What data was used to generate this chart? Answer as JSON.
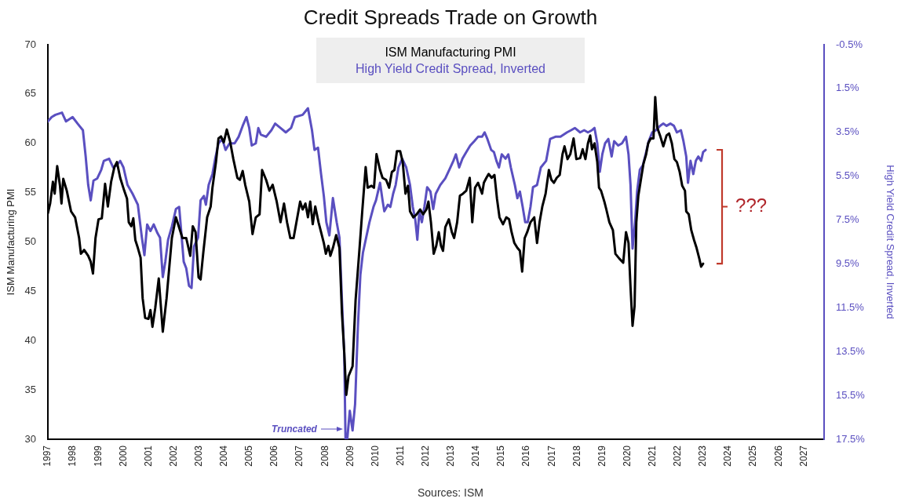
{
  "chart_data": {
    "type": "line",
    "title": "Credit Spreads Trade on Growth",
    "ylabel": "ISM Manufacturing PMI",
    "y2label": "High Yield Credit Spread, Inverted",
    "legend": "top",
    "xlim": [
      1997,
      2027.8
    ],
    "xticks": [
      1997,
      1998,
      1999,
      2000,
      2001,
      2002,
      2003,
      2004,
      2005,
      2006,
      2007,
      2008,
      2009,
      2010,
      2011,
      2012,
      2013,
      2014,
      2015,
      2016,
      2017,
      2018,
      2019,
      2020,
      2021,
      2022,
      2023,
      2024,
      2025,
      2026,
      2027
    ],
    "ylim": [
      30,
      70
    ],
    "yticks": [
      30,
      35,
      40,
      45,
      50,
      55,
      60,
      65,
      70
    ],
    "y2lim": [
      17.5,
      -0.5
    ],
    "y2ticks": [
      {
        "value": -0.5,
        "label": "-0.5%"
      },
      {
        "value": 1.5,
        "label": "1.5%"
      },
      {
        "value": 3.5,
        "label": "3.5%"
      },
      {
        "value": 5.5,
        "label": "5.5%"
      },
      {
        "value": 7.5,
        "label": "7.5%"
      },
      {
        "value": 9.5,
        "label": "9.5%"
      },
      {
        "value": 11.5,
        "label": "11.5%"
      },
      {
        "value": 13.5,
        "label": "13.5%"
      },
      {
        "value": 15.5,
        "label": "15.5%"
      },
      {
        "value": 17.5,
        "label": "17.5%"
      }
    ],
    "series": [
      {
        "name": "ISM Manufacturing PMI",
        "color": "#000000",
        "x": [
          1997.0,
          1997.09,
          1997.2,
          1997.27,
          1997.37,
          1997.48,
          1997.54,
          1997.61,
          1997.75,
          1997.92,
          1998.08,
          1998.24,
          1998.31,
          1998.44,
          1998.6,
          1998.7,
          1998.79,
          1998.89,
          1999.01,
          1999.14,
          1999.27,
          1999.38,
          1999.51,
          1999.64,
          1999.74,
          1999.87,
          2000.03,
          2000.14,
          2000.21,
          2000.31,
          2000.39,
          2000.47,
          2000.57,
          2000.68,
          2000.76,
          2000.86,
          2000.99,
          2001.07,
          2001.15,
          2001.26,
          2001.4,
          2001.56,
          2001.71,
          2001.92,
          2002.08,
          2002.34,
          2002.49,
          2002.65,
          2002.75,
          2002.86,
          2002.98,
          2003.06,
          2003.17,
          2003.32,
          2003.46,
          2003.53,
          2003.67,
          2003.77,
          2003.87,
          2003.98,
          2004.1,
          2004.23,
          2004.36,
          2004.52,
          2004.62,
          2004.73,
          2004.83,
          2004.99,
          2005.12,
          2005.25,
          2005.4,
          2005.5,
          2005.66,
          2005.79,
          2005.92,
          2006.08,
          2006.23,
          2006.37,
          2006.49,
          2006.62,
          2006.75,
          2007.01,
          2007.11,
          2007.22,
          2007.32,
          2007.41,
          2007.51,
          2007.61,
          2007.74,
          2007.84,
          2007.95,
          2008.03,
          2008.13,
          2008.21,
          2008.31,
          2008.44,
          2008.57,
          2008.67,
          2008.76,
          2008.84,
          2008.93,
          2009.09,
          2009.21,
          2009.35,
          2009.48,
          2009.61,
          2009.69,
          2009.84,
          2009.94,
          2010.04,
          2010.18,
          2010.28,
          2010.42,
          2010.54,
          2010.65,
          2010.75,
          2010.85,
          2010.98,
          2011.08,
          2011.19,
          2011.29,
          2011.37,
          2011.5,
          2011.63,
          2011.77,
          2011.89,
          2012.02,
          2012.1,
          2012.2,
          2012.31,
          2012.41,
          2012.51,
          2012.6,
          2012.68,
          2012.77,
          2012.91,
          2013.03,
          2013.12,
          2013.24,
          2013.35,
          2013.47,
          2013.6,
          2013.74,
          2013.84,
          2013.95,
          2014.07,
          2014.23,
          2014.3,
          2014.4,
          2014.49,
          2014.61,
          2014.72,
          2014.82,
          2014.92,
          2015.06,
          2015.19,
          2015.3,
          2015.4,
          2015.51,
          2015.63,
          2015.73,
          2015.82,
          2015.92,
          2016.02,
          2016.15,
          2016.3,
          2016.41,
          2016.51,
          2016.62,
          2016.75,
          2016.88,
          2016.98,
          2017.08,
          2017.19,
          2017.31,
          2017.42,
          2017.5,
          2017.62,
          2017.73,
          2017.86,
          2017.97,
          2018.12,
          2018.22,
          2018.33,
          2018.43,
          2018.52,
          2018.59,
          2018.69,
          2018.8,
          2018.87,
          2018.95,
          2019.08,
          2019.16,
          2019.28,
          2019.42,
          2019.52,
          2019.68,
          2019.83,
          2019.94,
          2020.04,
          2020.12,
          2020.2,
          2020.28,
          2020.35,
          2020.43,
          2020.53,
          2020.63,
          2020.74,
          2020.82,
          2020.92,
          2021.03,
          2021.1,
          2021.18,
          2021.29,
          2021.42,
          2021.55,
          2021.65,
          2021.76,
          2021.86,
          2021.96,
          2022.07,
          2022.17,
          2022.28,
          2022.33,
          2022.43,
          2022.53,
          2022.64,
          2022.74,
          2022.85,
          2022.92,
          2023.0
        ],
        "values": [
          52.9,
          53.9,
          56.1,
          54.9,
          57.7,
          55.7,
          53.9,
          56.4,
          55.2,
          53.1,
          52.5,
          50.4,
          48.8,
          49.2,
          48.6,
          48.0,
          46.8,
          50.4,
          52.3,
          52.4,
          55.9,
          53.6,
          56.1,
          57.6,
          58.1,
          56.5,
          55.2,
          54.4,
          52.0,
          51.6,
          52.4,
          50.2,
          49.4,
          48.4,
          44.3,
          42.3,
          42.2,
          43.1,
          41.4,
          43.3,
          46.3,
          40.9,
          44.3,
          50.4,
          52.5,
          50.4,
          50.4,
          48.6,
          51.6,
          51.0,
          46.4,
          46.2,
          49.0,
          52.5,
          53.6,
          55.5,
          58.1,
          60.5,
          60.7,
          60.1,
          61.4,
          60.2,
          58.4,
          56.5,
          56.3,
          57.2,
          55.8,
          54.1,
          50.8,
          52.5,
          52.8,
          57.3,
          56.3,
          55.2,
          55.8,
          54.1,
          52.0,
          53.9,
          52.0,
          50.4,
          50.4,
          54.1,
          53.3,
          53.9,
          52.5,
          54.1,
          51.8,
          53.6,
          52.0,
          51.0,
          49.9,
          48.8,
          49.6,
          48.6,
          49.4,
          50.7,
          49.4,
          42.7,
          38.8,
          34.5,
          36.4,
          37.4,
          44.1,
          48.8,
          53.3,
          57.6,
          55.5,
          55.7,
          55.5,
          58.9,
          57.3,
          56.5,
          56.3,
          55.5,
          57.1,
          57.3,
          59.2,
          59.2,
          58.1,
          54.9,
          55.7,
          53.1,
          52.5,
          52.8,
          53.3,
          52.8,
          53.3,
          54.1,
          52.0,
          48.8,
          49.6,
          51.0,
          49.6,
          49.1,
          51.5,
          52.3,
          51.0,
          50.4,
          52.0,
          54.7,
          54.9,
          55.2,
          56.5,
          52.0,
          55.5,
          56.0,
          54.9,
          56.0,
          56.5,
          56.9,
          56.5,
          56.8,
          54.4,
          52.5,
          51.8,
          52.5,
          52.3,
          51.0,
          49.9,
          49.4,
          49.1,
          47.0,
          50.4,
          51.0,
          52.0,
          52.5,
          49.9,
          52.0,
          53.6,
          54.9,
          57.3,
          56.3,
          56.0,
          56.5,
          56.8,
          58.9,
          59.7,
          58.4,
          58.9,
          60.5,
          58.4,
          58.5,
          59.4,
          58.4,
          60.0,
          60.8,
          59.4,
          60.0,
          58.1,
          55.5,
          55.2,
          54.1,
          53.3,
          52.0,
          51.2,
          48.8,
          48.3,
          47.9,
          51.0,
          49.9,
          45.4,
          41.5,
          43.5,
          52.0,
          54.7,
          56.3,
          57.9,
          58.9,
          60.0,
          60.5,
          60.5,
          64.7,
          61.6,
          60.8,
          59.7,
          60.8,
          61.0,
          60.0,
          58.4,
          58.1,
          57.1,
          55.7,
          55.2,
          53.1,
          52.8,
          51.2,
          50.2,
          49.4,
          48.3,
          47.5,
          47.8
        ]
      },
      {
        "name": "High Yield Credit Spread, Inverted",
        "color": "#5a4fc0",
        "axis": "y2",
        "x": [
          1997.0,
          1997.15,
          1997.3,
          1997.56,
          1997.72,
          1997.98,
          1998.18,
          1998.39,
          1998.5,
          1998.6,
          1998.7,
          1998.81,
          1998.96,
          1999.12,
          1999.22,
          1999.43,
          1999.59,
          1999.74,
          1999.87,
          2000.0,
          2000.16,
          2000.36,
          2000.57,
          2000.73,
          2000.83,
          2000.94,
          2001.07,
          2001.2,
          2001.35,
          2001.45,
          2001.56,
          2001.66,
          2001.77,
          2001.92,
          2002.08,
          2002.21,
          2002.29,
          2002.39,
          2002.49,
          2002.6,
          2002.7,
          2002.8,
          2002.96,
          2003.06,
          2003.19,
          2003.27,
          2003.38,
          2003.53,
          2003.64,
          2003.77,
          2003.92,
          2004.05,
          2004.21,
          2004.41,
          2004.57,
          2004.73,
          2004.88,
          2004.99,
          2005.09,
          2005.25,
          2005.35,
          2005.45,
          2005.66,
          2005.87,
          2006.02,
          2006.23,
          2006.44,
          2006.65,
          2006.8,
          2007.11,
          2007.32,
          2007.48,
          2007.58,
          2007.72,
          2007.84,
          2007.95,
          2008.05,
          2008.17,
          2008.31,
          2008.46,
          2008.57,
          2008.67,
          2008.76,
          2008.81,
          2008.88,
          2008.98,
          2009.09,
          2009.19,
          2009.3,
          2009.4,
          2009.5,
          2009.63,
          2009.76,
          2009.92,
          2010.02,
          2010.18,
          2010.28,
          2010.35,
          2010.49,
          2010.59,
          2010.7,
          2010.8,
          2010.91,
          2011.06,
          2011.22,
          2011.37,
          2011.48,
          2011.58,
          2011.66,
          2011.74,
          2011.84,
          2011.94,
          2012.05,
          2012.18,
          2012.29,
          2012.39,
          2012.57,
          2012.77,
          2012.93,
          2013.09,
          2013.19,
          2013.32,
          2013.45,
          2013.6,
          2013.76,
          2013.92,
          2014.07,
          2014.23,
          2014.33,
          2014.44,
          2014.59,
          2014.7,
          2014.8,
          2014.9,
          2015.01,
          2015.16,
          2015.27,
          2015.37,
          2015.53,
          2015.63,
          2015.73,
          2015.84,
          2015.94,
          2016.04,
          2016.15,
          2016.25,
          2016.41,
          2016.56,
          2016.77,
          2016.93,
          2017.14,
          2017.34,
          2017.6,
          2017.76,
          2017.91,
          2018.12,
          2018.28,
          2018.43,
          2018.59,
          2018.69,
          2018.8,
          2018.9,
          2019.0,
          2019.11,
          2019.24,
          2019.37,
          2019.47,
          2019.63,
          2019.78,
          2019.94,
          2020.04,
          2020.12,
          2020.2,
          2020.3,
          2020.38,
          2020.49,
          2020.61,
          2020.74,
          2020.84,
          2020.98,
          2021.13,
          2021.29,
          2021.42,
          2021.55,
          2021.7,
          2021.84,
          2021.96,
          2022.12,
          2022.22,
          2022.33,
          2022.4,
          2022.5,
          2022.61,
          2022.71,
          2022.81,
          2022.92,
          2023.0,
          2023.1
        ],
        "values": [
          3.0,
          2.8,
          2.7,
          2.6,
          3.0,
          2.8,
          3.1,
          3.4,
          4.6,
          5.9,
          6.6,
          5.7,
          5.6,
          5.2,
          4.8,
          4.7,
          5.1,
          5.0,
          4.8,
          5.1,
          5.9,
          6.3,
          6.8,
          8.3,
          9.1,
          7.7,
          8.0,
          7.7,
          8.1,
          8.3,
          10.1,
          9.4,
          8.4,
          7.8,
          7.0,
          6.9,
          8.0,
          9.4,
          9.7,
          10.5,
          10.6,
          8.7,
          8.3,
          6.6,
          6.4,
          6.8,
          5.9,
          5.4,
          4.7,
          4.0,
          3.8,
          4.3,
          4.0,
          4.0,
          3.7,
          3.2,
          2.8,
          3.3,
          4.1,
          4.0,
          3.3,
          3.6,
          3.7,
          3.4,
          3.1,
          3.3,
          3.5,
          3.3,
          2.8,
          2.7,
          2.4,
          3.4,
          4.3,
          4.2,
          5.4,
          6.4,
          7.6,
          8.2,
          6.5,
          7.6,
          8.3,
          11.2,
          13.6,
          17.5,
          17.5,
          16.2,
          17.1,
          15.9,
          12.4,
          10.0,
          9.0,
          8.3,
          7.6,
          6.9,
          6.6,
          5.8,
          6.6,
          7.1,
          6.8,
          6.9,
          6.3,
          5.9,
          5.1,
          4.7,
          5.1,
          5.9,
          6.9,
          7.5,
          8.4,
          7.1,
          7.6,
          6.9,
          6.0,
          6.2,
          7.0,
          6.3,
          5.9,
          5.6,
          5.2,
          4.8,
          4.5,
          5.1,
          4.7,
          4.4,
          4.1,
          3.9,
          3.7,
          3.7,
          3.5,
          3.8,
          4.3,
          4.4,
          4.8,
          5.1,
          4.5,
          4.7,
          4.5,
          5.1,
          5.9,
          6.5,
          6.2,
          6.9,
          7.6,
          7.6,
          6.9,
          6.0,
          5.9,
          5.1,
          4.8,
          3.8,
          3.7,
          3.7,
          3.5,
          3.4,
          3.3,
          3.5,
          3.4,
          3.5,
          3.4,
          3.3,
          4.0,
          5.3,
          4.5,
          4.0,
          3.8,
          4.6,
          3.9,
          4.1,
          4.0,
          3.7,
          4.5,
          5.9,
          8.8,
          7.6,
          6.2,
          5.2,
          5.0,
          4.4,
          3.9,
          3.5,
          3.4,
          3.2,
          3.1,
          3.2,
          3.1,
          3.2,
          3.5,
          3.4,
          3.9,
          4.6,
          5.8,
          4.8,
          5.4,
          4.8,
          4.6,
          4.8,
          4.4,
          4.3
        ]
      }
    ],
    "annotations": [
      {
        "text": "Truncated",
        "x": 2008.8,
        "y": 31
      },
      "???",
      "Sources: ISM"
    ]
  }
}
